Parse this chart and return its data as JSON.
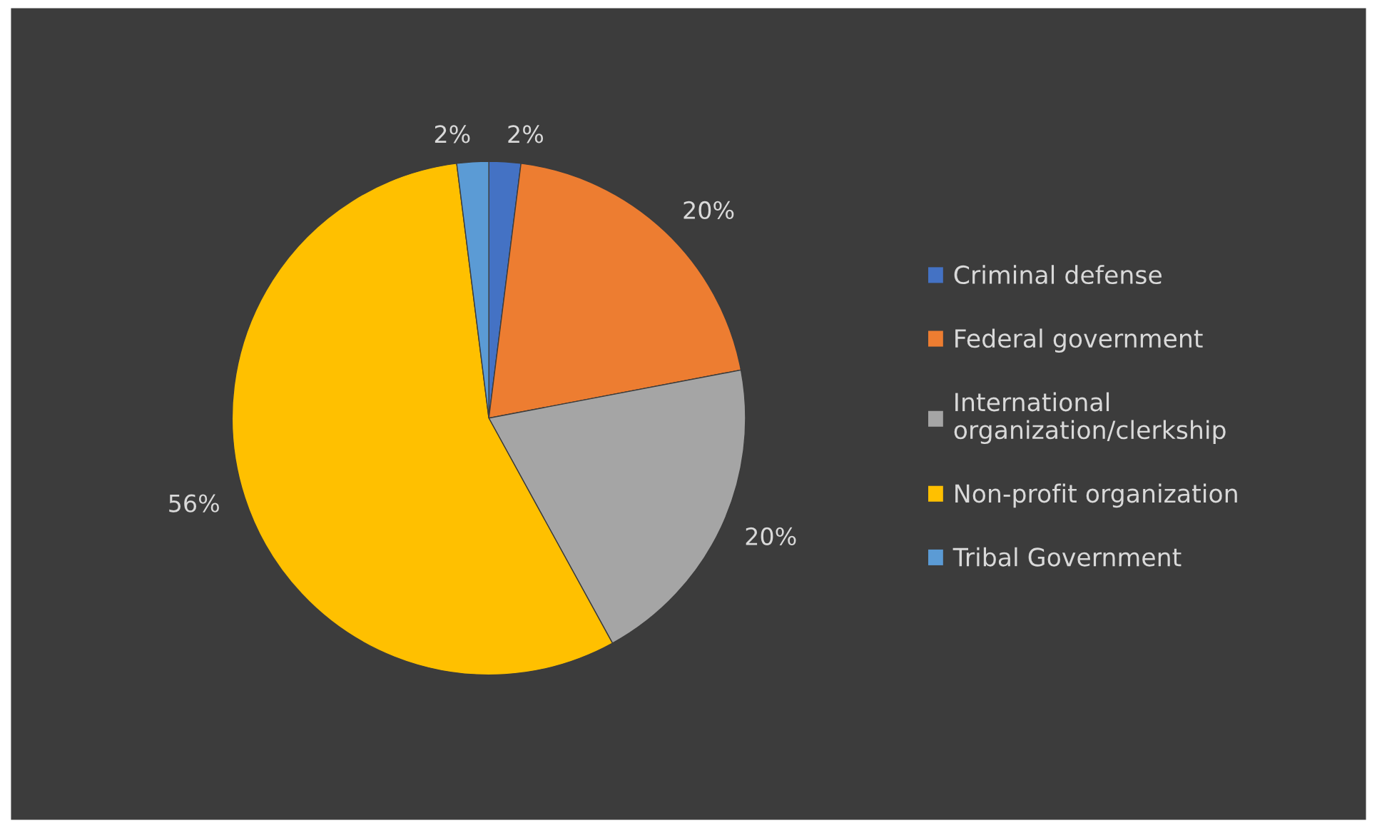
{
  "chart_data": {
    "type": "pie",
    "categories": [
      "Criminal defense",
      "Federal government",
      "International organization/clerkship",
      "Non-profit organization",
      "Tribal Government"
    ],
    "values": [
      2,
      20,
      20,
      56,
      2
    ],
    "value_labels": [
      "2%",
      "20%",
      "20%",
      "56%",
      "2%"
    ],
    "colors": [
      "#4472c4",
      "#ed7d31",
      "#a5a5a5",
      "#ffc000",
      "#5b9bd5"
    ],
    "legend": "right"
  }
}
